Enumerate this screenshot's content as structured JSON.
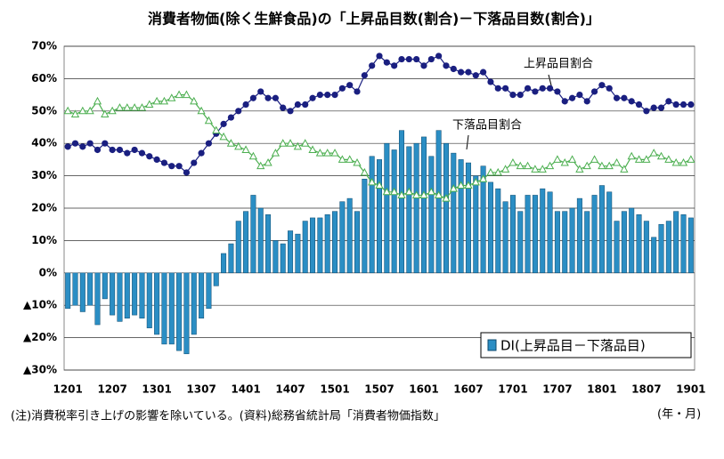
{
  "chart_data": {
    "type": "bar_line",
    "title": "消費者物価(除く生鮮食品)の「上昇品目数(割合)－下落品目数(割合)」",
    "categories": [
      "1201",
      null,
      null,
      null,
      null,
      null,
      "1207",
      null,
      null,
      null,
      null,
      null,
      "1301",
      null,
      null,
      null,
      null,
      null,
      "1307",
      null,
      null,
      null,
      null,
      null,
      "1401",
      null,
      null,
      null,
      null,
      null,
      "1407",
      null,
      null,
      null,
      null,
      null,
      "1501",
      null,
      null,
      null,
      null,
      null,
      "1507",
      null,
      null,
      null,
      null,
      null,
      "1601",
      null,
      null,
      null,
      null,
      null,
      "1607",
      null,
      null,
      null,
      null,
      null,
      "1701",
      null,
      null,
      null,
      null,
      null,
      "1707",
      null,
      null,
      null,
      null,
      null,
      "1801",
      null,
      null,
      null,
      null,
      null,
      "1807",
      null,
      null,
      null,
      null,
      null,
      "1901"
    ],
    "series": [
      {
        "name": "DI(上昇品目－下落品目)",
        "kind": "bar",
        "color": "#2b8ec4",
        "values": [
          -11,
          -10,
          -12,
          -10,
          -16,
          -8,
          -13,
          -15,
          -14,
          -13,
          -14,
          -17,
          -19,
          -22,
          -22,
          -24,
          -25,
          -19,
          -14,
          -11,
          -4,
          6,
          9,
          16,
          19,
          24,
          20,
          18,
          10,
          9,
          13,
          12,
          16,
          17,
          17,
          18,
          19,
          22,
          23,
          19,
          29,
          36,
          35,
          40,
          38,
          44,
          39,
          40,
          42,
          36,
          44,
          40,
          37,
          35,
          34,
          30,
          33,
          28,
          26,
          22,
          24,
          19,
          24,
          24,
          26,
          25,
          19,
          19,
          20,
          23,
          19,
          24,
          27,
          25,
          16,
          19,
          20,
          18,
          16,
          11,
          15,
          16,
          19,
          18,
          17
        ]
      },
      {
        "name": "上昇品目割合",
        "kind": "line",
        "marker": "circle",
        "color": "#1a1f80",
        "values": [
          39,
          40,
          39,
          40,
          38,
          40,
          38,
          38,
          37,
          38,
          37,
          36,
          35,
          34,
          33,
          33,
          31,
          34,
          37,
          40,
          43,
          46,
          48,
          50,
          52,
          54,
          56,
          54,
          54,
          51,
          50,
          52,
          52,
          54,
          55,
          55,
          55,
          57,
          58,
          56,
          61,
          64,
          67,
          65,
          64,
          66,
          66,
          66,
          64,
          66,
          67,
          64,
          63,
          62,
          62,
          61,
          62,
          59,
          57,
          57,
          55,
          55,
          57,
          56,
          57,
          57,
          56,
          53,
          54,
          55,
          53,
          56,
          58,
          57,
          54,
          54,
          53,
          52,
          50,
          51,
          51,
          53,
          52,
          52,
          52
        ]
      },
      {
        "name": "下落品目割合",
        "kind": "line",
        "marker": "triangle",
        "color": "#4caf50",
        "values": [
          50,
          49,
          50,
          50,
          53,
          49,
          50,
          51,
          51,
          51,
          51,
          52,
          53,
          53,
          54,
          55,
          55,
          53,
          50,
          47,
          44,
          42,
          40,
          39,
          38,
          36,
          33,
          34,
          37,
          40,
          40,
          39,
          40,
          38,
          37,
          37,
          37,
          35,
          35,
          34,
          31,
          28,
          27,
          25,
          25,
          24,
          25,
          24,
          24,
          25,
          24,
          23,
          26,
          27,
          27,
          28,
          29,
          31,
          31,
          32,
          34,
          33,
          33,
          32,
          32,
          33,
          35,
          34,
          35,
          32,
          33,
          35,
          33,
          33,
          34,
          32,
          36,
          35,
          35,
          37,
          36,
          35,
          34,
          34,
          35
        ]
      }
    ],
    "ylim": [
      -30,
      70
    ],
    "yticks": [
      {
        "value": 70,
        "label": "70%"
      },
      {
        "value": 60,
        "label": "60%"
      },
      {
        "value": 50,
        "label": "50%"
      },
      {
        "value": 40,
        "label": "40%"
      },
      {
        "value": 30,
        "label": "30%"
      },
      {
        "value": 20,
        "label": "20%"
      },
      {
        "value": 10,
        "label": "10%"
      },
      {
        "value": 0,
        "label": "0%"
      },
      {
        "value": -10,
        "label": "▲10%"
      },
      {
        "value": -20,
        "label": "▲20%"
      },
      {
        "value": -30,
        "label": "▲30%"
      }
    ],
    "grid": true,
    "x_unit": "(年・月)",
    "note": "(注)消費税率引き上げの影響を除いている。(資料)総務省統計局「消費者物価指数」"
  }
}
